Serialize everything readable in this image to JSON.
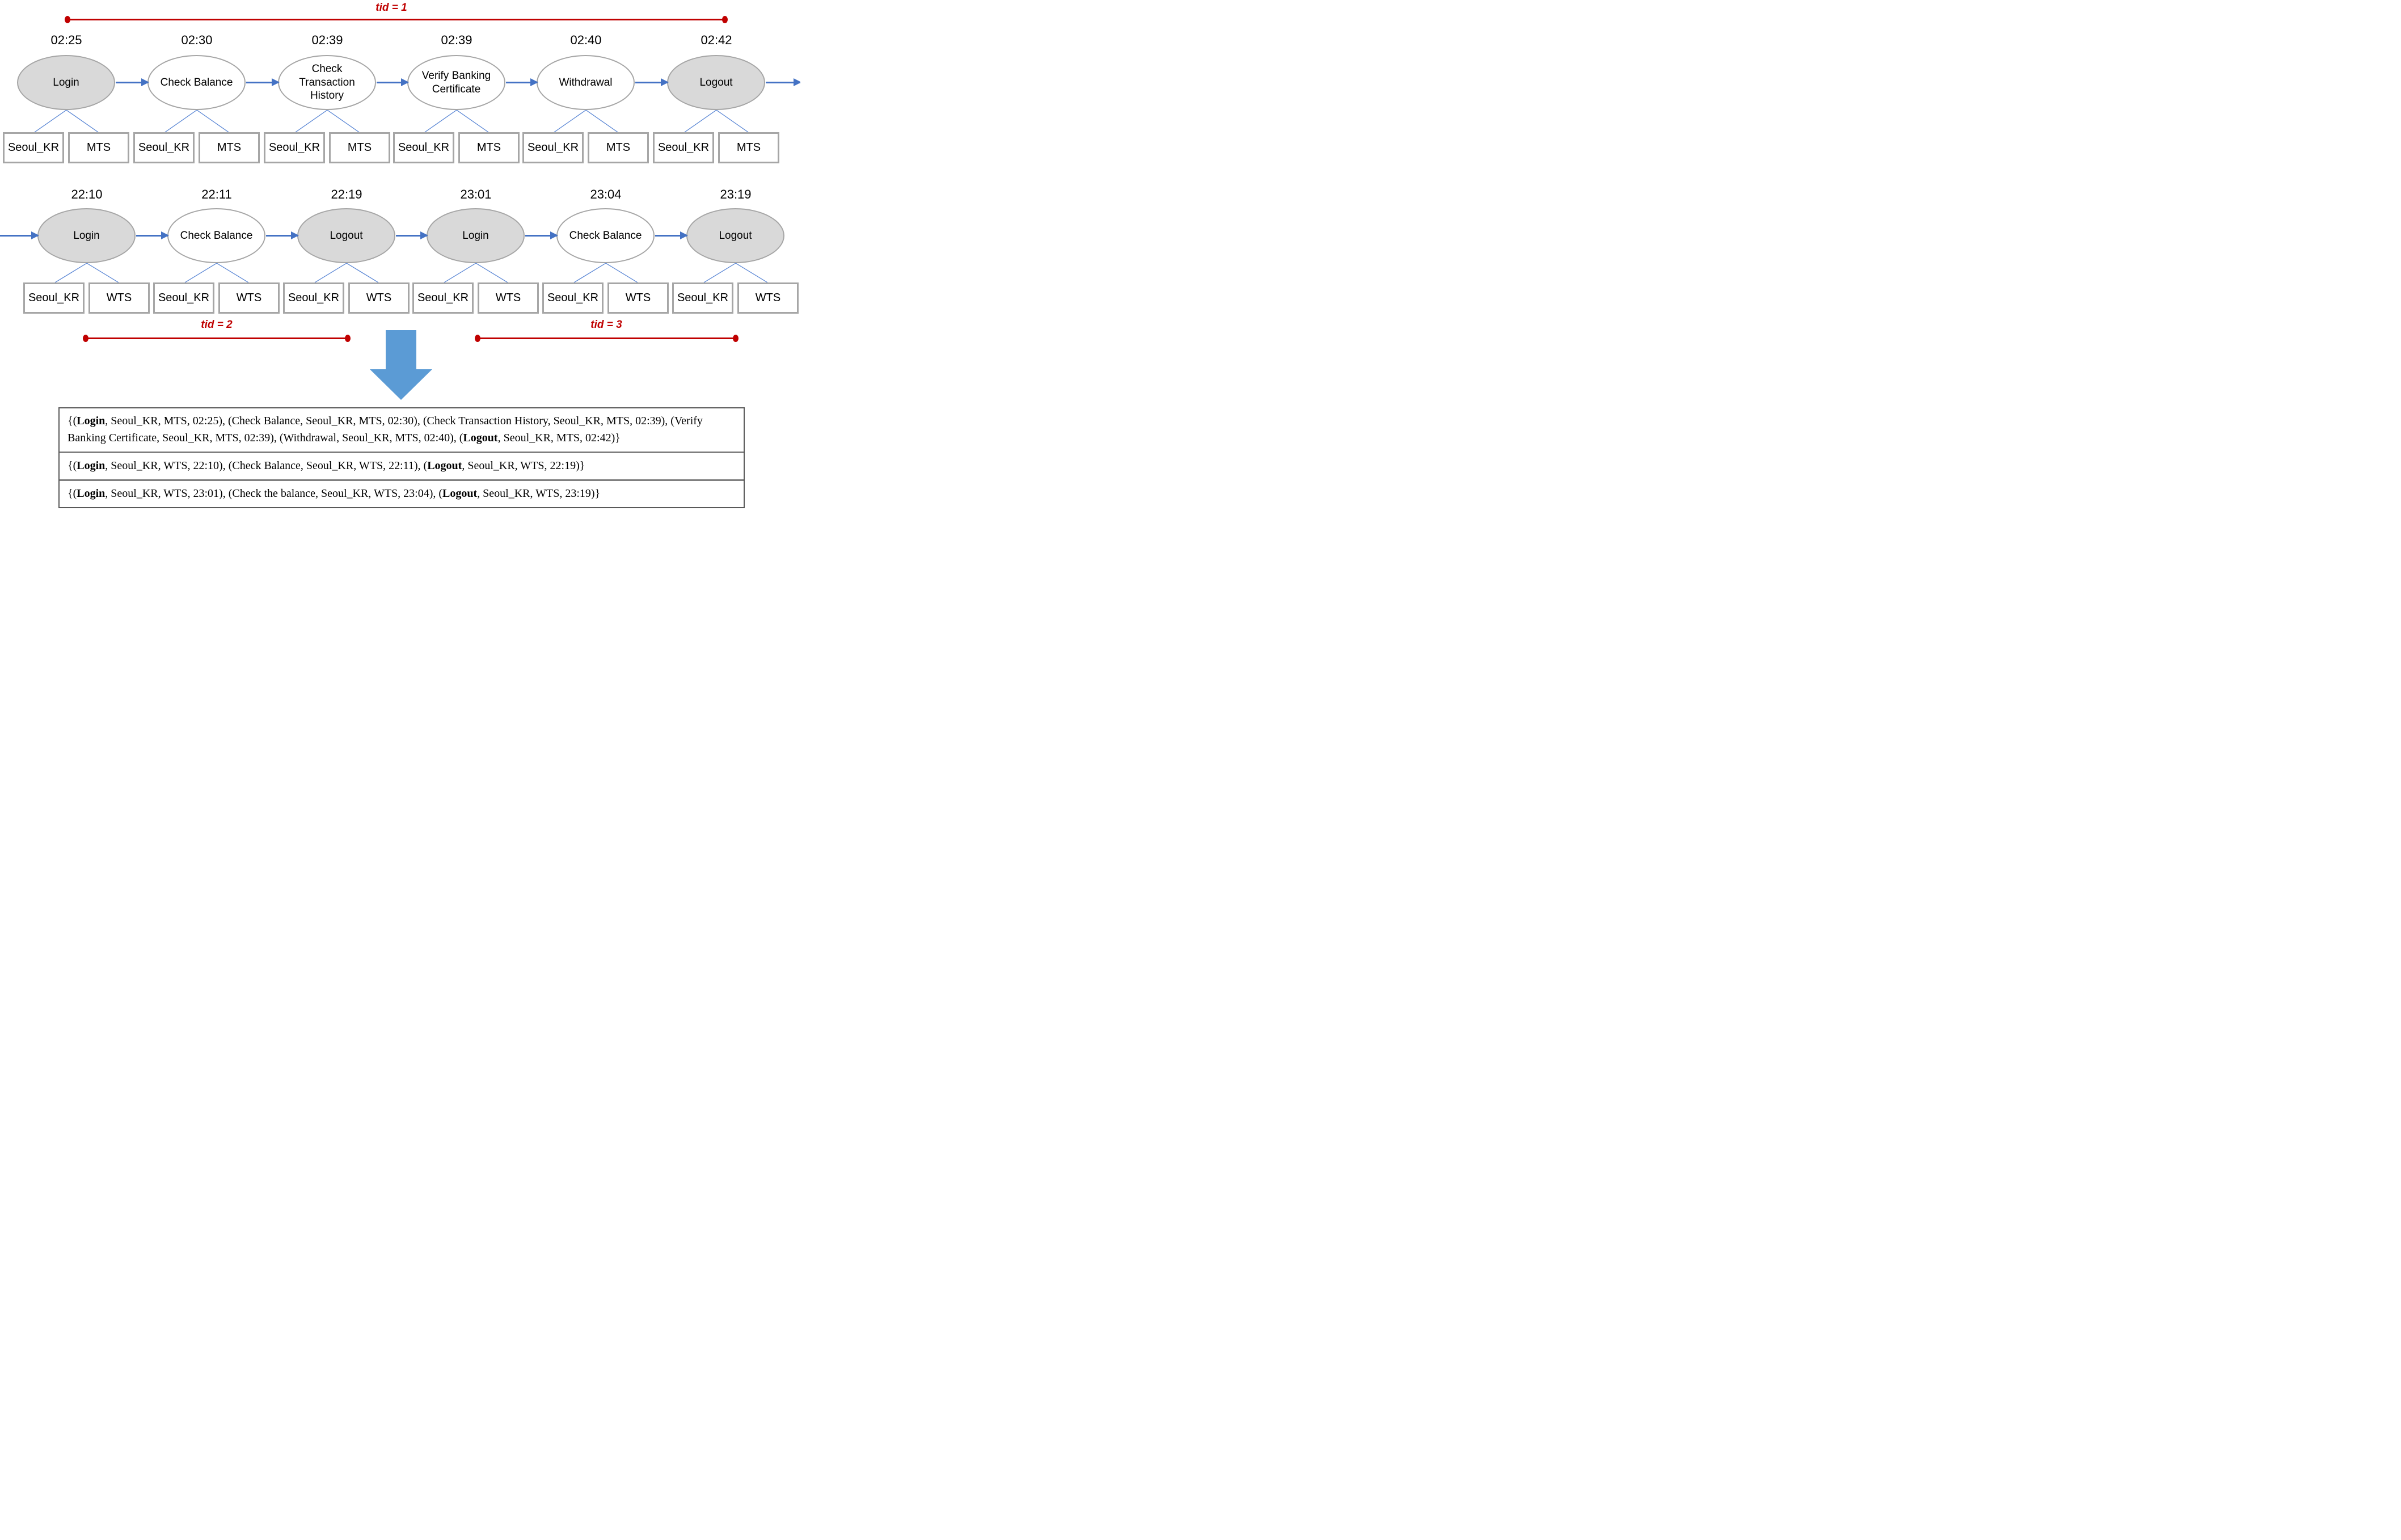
{
  "diagram": {
    "tid_brackets": [
      {
        "label": "tid = 1"
      },
      {
        "label": "tid = 2"
      },
      {
        "label": "tid = 3"
      }
    ],
    "colors": {
      "bracket_red": "#c00000",
      "flow_blue": "#4472c4",
      "connector_blue": "#5b87d5",
      "big_arrow_blue": "#5b9bd5",
      "node_fill_gray": "#d9d9d9",
      "node_border_gray": "#a6a6a6"
    },
    "rows": [
      {
        "events": [
          {
            "time": "02:25",
            "label": "Login",
            "fill": "gray",
            "location": "Seoul_KR",
            "channel": "MTS"
          },
          {
            "time": "02:30",
            "label": "Check Balance",
            "fill": "white",
            "location": "Seoul_KR",
            "channel": "MTS"
          },
          {
            "time": "02:39",
            "label": "Check Transaction History",
            "fill": "white",
            "location": "Seoul_KR",
            "channel": "MTS"
          },
          {
            "time": "02:39",
            "label": "Verify Banking Certificate",
            "fill": "white",
            "location": "Seoul_KR",
            "channel": "MTS"
          },
          {
            "time": "02:40",
            "label": "Withdrawal",
            "fill": "white",
            "location": "Seoul_KR",
            "channel": "MTS"
          },
          {
            "time": "02:42",
            "label": "Logout",
            "fill": "gray",
            "location": "Seoul_KR",
            "channel": "MTS"
          }
        ]
      },
      {
        "events": [
          {
            "time": "22:10",
            "label": "Login",
            "fill": "gray",
            "location": "Seoul_KR",
            "channel": "WTS"
          },
          {
            "time": "22:11",
            "label": "Check Balance",
            "fill": "white",
            "location": "Seoul_KR",
            "channel": "WTS"
          },
          {
            "time": "22:19",
            "label": "Logout",
            "fill": "gray",
            "location": "Seoul_KR",
            "channel": "WTS"
          },
          {
            "time": "23:01",
            "label": "Login",
            "fill": "gray",
            "location": "Seoul_KR",
            "channel": "WTS"
          },
          {
            "time": "23:04",
            "label": "Check Balance",
            "fill": "white",
            "location": "Seoul_KR",
            "channel": "WTS"
          },
          {
            "time": "23:19",
            "label": "Logout",
            "fill": "gray",
            "location": "Seoul_KR",
            "channel": "WTS"
          }
        ]
      }
    ]
  },
  "trace_table": {
    "rows": [
      {
        "segments": [
          {
            "t": "{("
          },
          {
            "t": "Login",
            "b": true
          },
          {
            "t": ", Seoul_KR, MTS, 02:25), (Check Balance, Seoul_KR, MTS, 02:30), (Check Transaction History, Seoul_KR, MTS, 02:39), (Verify Banking Certificate, Seoul_KR, MTS, 02:39), (Withdrawal, Seoul_KR, MTS, 02:40), ("
          },
          {
            "t": "Logout",
            "b": true
          },
          {
            "t": ", Seoul_KR, MTS, 02:42)}"
          }
        ]
      },
      {
        "segments": [
          {
            "t": "{("
          },
          {
            "t": "Login",
            "b": true
          },
          {
            "t": ", Seoul_KR, WTS, 22:10), (Check Balance, Seoul_KR, WTS, 22:11), ("
          },
          {
            "t": "Logout",
            "b": true
          },
          {
            "t": ", Seoul_KR, WTS, 22:19)}"
          }
        ]
      },
      {
        "segments": [
          {
            "t": "{("
          },
          {
            "t": "Login",
            "b": true
          },
          {
            "t": ", Seoul_KR, WTS, 23:01), (Check the balance, Seoul_KR, WTS, 23:04), ("
          },
          {
            "t": "Logout",
            "b": true
          },
          {
            "t": ", Seoul_KR, WTS, 23:19)}"
          }
        ]
      }
    ]
  }
}
